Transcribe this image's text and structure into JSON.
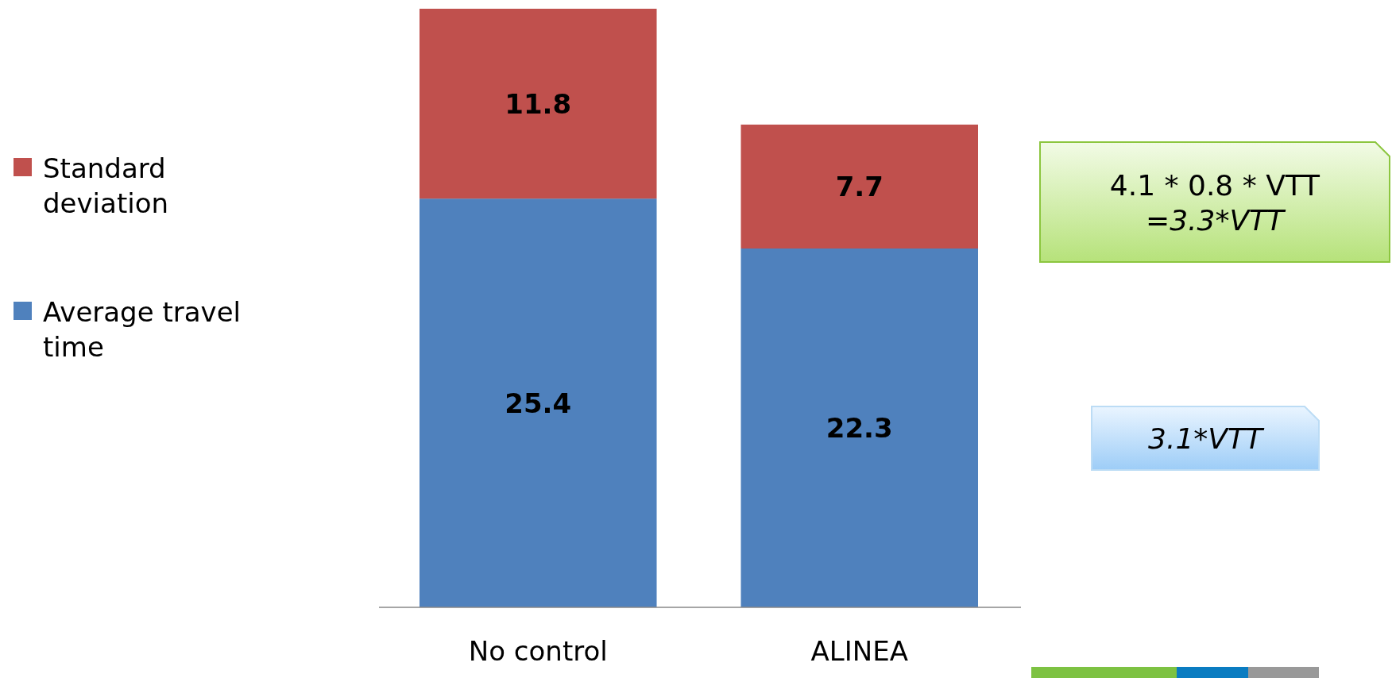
{
  "chart_data": {
    "type": "bar",
    "stacked": true,
    "categories": [
      "No control",
      "ALINEA"
    ],
    "series": [
      {
        "name": "Average travel time",
        "color": "#4f81bd",
        "values": [
          25.4,
          22.3
        ]
      },
      {
        "name": "Standard deviation",
        "color": "#c0504d",
        "values": [
          11.8,
          7.7
        ]
      }
    ],
    "data_labels": true,
    "legend": "left",
    "annotations": [
      "4.1 * 0.8 * VTT\n=3.3*VTT",
      "3.1*VTT"
    ]
  }
}
